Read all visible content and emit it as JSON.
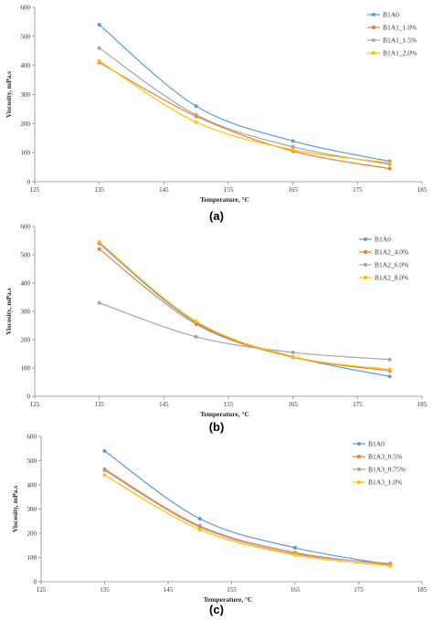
{
  "chart_data": [
    {
      "type": "line",
      "panel_label": "(a)",
      "xlabel": "Temperature, °C",
      "ylabel": "Viscosity, mPa.s",
      "xlim": [
        125,
        185
      ],
      "ylim": [
        0,
        600
      ],
      "xticks": [
        125,
        135,
        145,
        155,
        165,
        175,
        185
      ],
      "yticks": [
        0,
        100,
        200,
        300,
        400,
        500,
        600
      ],
      "x": [
        135,
        150,
        165,
        180
      ],
      "legend_position": "top-right",
      "grid": false,
      "series": [
        {
          "name": "B1A0",
          "color": "#5b9bd5",
          "values": [
            540,
            260,
            140,
            70
          ]
        },
        {
          "name": "B1A1_1.0%",
          "color": "#ed7d31",
          "values": [
            410,
            225,
            105,
            45
          ]
        },
        {
          "name": "B1A1_1.5%",
          "color": "#a5a5a5",
          "values": [
            460,
            230,
            120,
            60
          ]
        },
        {
          "name": "B1A1_2.0%",
          "color": "#ffc000",
          "values": [
            415,
            205,
            110,
            65
          ]
        }
      ]
    },
    {
      "type": "line",
      "panel_label": "(b)",
      "xlabel": "Temperature, °C",
      "ylabel": "Viscosity, mPa.s",
      "xlim": [
        125,
        185
      ],
      "ylim": [
        0,
        600
      ],
      "xticks": [
        125,
        135,
        145,
        155,
        165,
        175,
        185
      ],
      "yticks": [
        0,
        100,
        200,
        300,
        400,
        500,
        600
      ],
      "x": [
        135,
        150,
        165,
        180
      ],
      "legend_position": "top-right",
      "grid": false,
      "series": [
        {
          "name": "B1A0",
          "color": "#5b9bd5",
          "values": [
            540,
            260,
            140,
            70
          ]
        },
        {
          "name": "B1A2_4.0%",
          "color": "#ed7d31",
          "values": [
            520,
            255,
            138,
            90
          ]
        },
        {
          "name": "B1A2_6.0%",
          "color": "#a5a5a5",
          "values": [
            330,
            210,
            155,
            130
          ]
        },
        {
          "name": "B1A2_8.0%",
          "color": "#ffc000",
          "values": [
            545,
            265,
            140,
            95
          ]
        }
      ]
    },
    {
      "type": "line",
      "panel_label": "(c)",
      "xlabel": "Temperature, °C",
      "ylabel": "Viscosity, mPa.s",
      "xlim": [
        125,
        185
      ],
      "ylim": [
        0,
        600
      ],
      "xticks": [
        125,
        135,
        145,
        155,
        165,
        175,
        185
      ],
      "yticks": [
        0,
        100,
        200,
        300,
        400,
        500,
        600
      ],
      "x": [
        135,
        150,
        165,
        180
      ],
      "legend_position": "top-right",
      "grid": false,
      "series": [
        {
          "name": "B1A0",
          "color": "#5b9bd5",
          "values": [
            540,
            260,
            140,
            70
          ]
        },
        {
          "name": "B1A3_0.5%",
          "color": "#ed7d31",
          "values": [
            465,
            230,
            120,
            70
          ]
        },
        {
          "name": "B1A3_0.75%",
          "color": "#a5a5a5",
          "values": [
            460,
            225,
            115,
            75
          ]
        },
        {
          "name": "B1A3_1.0%",
          "color": "#ffc000",
          "values": [
            440,
            215,
            110,
            65
          ]
        }
      ]
    }
  ]
}
